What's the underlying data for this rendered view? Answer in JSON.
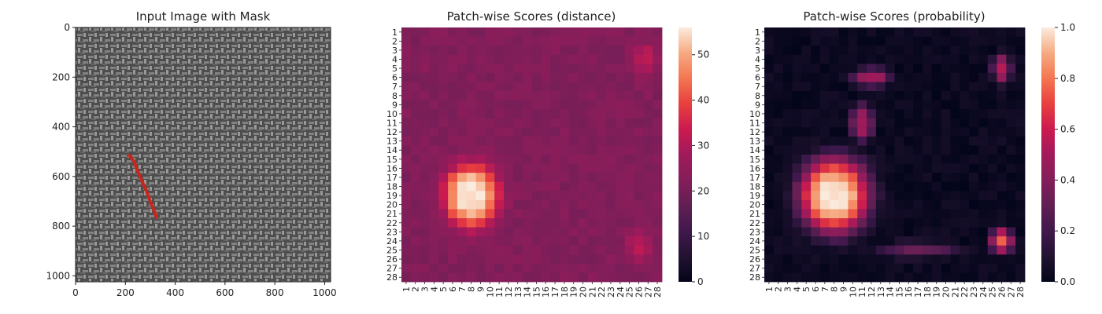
{
  "panels": [
    {
      "title": "Input Image with Mask",
      "type": "image",
      "x_ticks": [
        "0",
        "200",
        "400",
        "600",
        "800",
        "1000"
      ],
      "y_ticks": [
        "0",
        "200",
        "400",
        "600",
        "800",
        "1000"
      ],
      "image_extent": [
        0,
        1024
      ],
      "mask_color": "#c8261c",
      "mask_points": [
        [
          215,
          515
        ],
        [
          235,
          540
        ],
        [
          250,
          580
        ],
        [
          265,
          615
        ],
        [
          285,
          660
        ],
        [
          300,
          700
        ],
        [
          318,
          745
        ],
        [
          325,
          765
        ]
      ]
    },
    {
      "title": "Patch-wise Scores (distance)",
      "type": "heatmap",
      "colorbar_ticks": [
        "0",
        "10",
        "20",
        "30",
        "40",
        "50"
      ],
      "colorbar_range": [
        0,
        56
      ],
      "row_labels": [
        "1",
        "2",
        "3",
        "4",
        "5",
        "6",
        "7",
        "8",
        "9",
        "10",
        "11",
        "12",
        "13",
        "14",
        "15",
        "16",
        "17",
        "18",
        "19",
        "20",
        "21",
        "22",
        "23",
        "24",
        "25",
        "26",
        "27",
        "28"
      ],
      "col_labels": [
        "1",
        "2",
        "3",
        "4",
        "5",
        "6",
        "7",
        "8",
        "9",
        "10",
        "11",
        "12",
        "13",
        "14",
        "15",
        "16",
        "17",
        "18",
        "19",
        "20",
        "21",
        "22",
        "23",
        "24",
        "25",
        "26",
        "27",
        "28"
      ]
    },
    {
      "title": "Patch-wise Scores (probability)",
      "type": "heatmap",
      "colorbar_ticks": [
        "0.0",
        "0.2",
        "0.4",
        "0.6",
        "0.8",
        "1.0"
      ],
      "colorbar_range": [
        0,
        1
      ],
      "row_labels": [
        "1",
        "2",
        "3",
        "4",
        "5",
        "6",
        "7",
        "8",
        "9",
        "10",
        "11",
        "12",
        "13",
        "14",
        "15",
        "16",
        "17",
        "18",
        "19",
        "20",
        "21",
        "22",
        "23",
        "24",
        "25",
        "26",
        "27",
        "28"
      ],
      "col_labels": [
        "1",
        "2",
        "3",
        "4",
        "5",
        "6",
        "7",
        "8",
        "9",
        "10",
        "11",
        "12",
        "13",
        "14",
        "15",
        "16",
        "17",
        "18",
        "19",
        "20",
        "21",
        "22",
        "23",
        "24",
        "25",
        "26",
        "27",
        "28"
      ]
    }
  ],
  "chart_data": [
    {
      "type": "heatmap",
      "title": "Patch-wise Scores (distance)",
      "rows": 28,
      "cols": 28,
      "value_range": [
        0,
        56
      ],
      "colormap": "rocket",
      "background_level": 22,
      "blobs": [
        {
          "center_row": 19,
          "center_col": 8,
          "peak": 56,
          "spread_rows": 3.5,
          "spread_cols": 3.0
        },
        {
          "center_row": 4,
          "center_col": 26.5,
          "peak": 32,
          "spread_rows": 1.8,
          "spread_cols": 1.4
        },
        {
          "center_row": 24.5,
          "center_col": 26,
          "peak": 31,
          "spread_rows": 1.8,
          "spread_cols": 1.4
        }
      ]
    },
    {
      "type": "heatmap",
      "title": "Patch-wise Scores (probability)",
      "rows": 28,
      "cols": 28,
      "value_range": [
        0,
        1
      ],
      "colormap": "rocket",
      "background_level": 0.03,
      "blobs": [
        {
          "center_row": 19,
          "center_col": 8,
          "peak": 1.0,
          "spread_rows": 4.2,
          "spread_cols": 3.8
        },
        {
          "center_row": 5,
          "center_col": 26,
          "peak": 0.55,
          "spread_rows": 1.5,
          "spread_cols": 1.0
        },
        {
          "center_row": 24,
          "center_col": 26,
          "peak": 0.75,
          "spread_rows": 1.3,
          "spread_cols": 1.2
        },
        {
          "center_row": 6,
          "center_col": 12,
          "peak": 0.5,
          "spread_rows": 1.0,
          "spread_cols": 2.0
        },
        {
          "center_row": 11,
          "center_col": 11,
          "peak": 0.5,
          "spread_rows": 2.0,
          "spread_cols": 1.2
        },
        {
          "center_row": 25,
          "center_col": 17,
          "peak": 0.3,
          "spread_rows": 0.9,
          "spread_cols": 4.0
        }
      ]
    }
  ]
}
